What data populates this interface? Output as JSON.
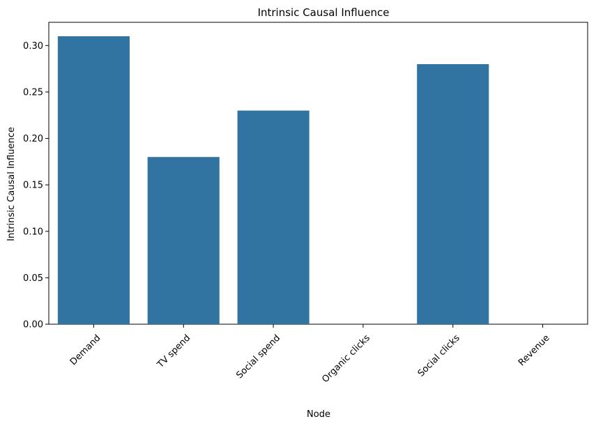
{
  "chart_data": {
    "type": "bar",
    "title": "Intrinsic Causal Influence",
    "xlabel": "Node",
    "ylabel": "Intrinsic Causal Influence",
    "categories": [
      "Demand",
      "TV spend",
      "Social spend",
      "Organic clicks",
      "Social clicks",
      "Revenue"
    ],
    "values": [
      0.31,
      0.18,
      0.23,
      0.0,
      0.28,
      0.0
    ],
    "ylim": [
      0,
      0.325
    ],
    "yticks": [
      "0.00",
      "0.05",
      "0.10",
      "0.15",
      "0.20",
      "0.25",
      "0.30"
    ],
    "grid": false,
    "legend": "none",
    "xtick_rotation": "45 degrees",
    "colors": {
      "bar": "#3274a1",
      "axis": "#000000",
      "background": "#ffffff"
    }
  }
}
